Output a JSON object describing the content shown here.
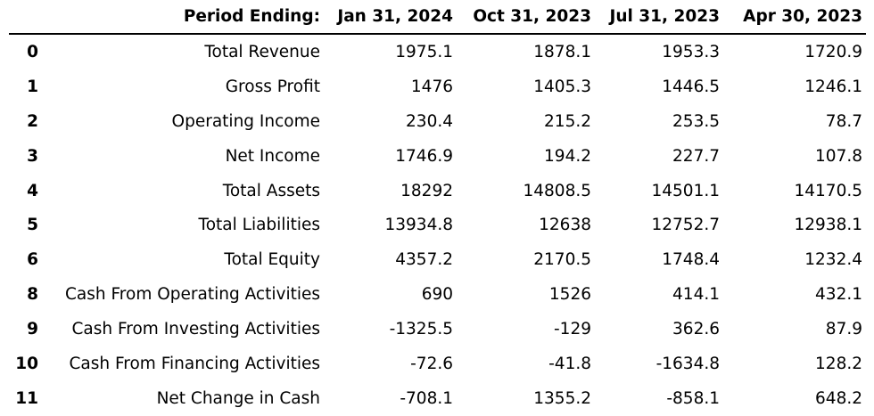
{
  "table": {
    "header": {
      "index_label": "",
      "period_label": "Period Ending:",
      "periods": [
        "Jan 31, 2024",
        "Oct 31, 2023",
        "Jul 31, 2023",
        "Apr 30, 2023"
      ]
    },
    "rows": [
      {
        "index": "0",
        "label": "Total Revenue",
        "values": [
          "1975.1",
          "1878.1",
          "1953.3",
          "1720.9"
        ]
      },
      {
        "index": "1",
        "label": "Gross Profit",
        "values": [
          "1476",
          "1405.3",
          "1446.5",
          "1246.1"
        ]
      },
      {
        "index": "2",
        "label": "Operating Income",
        "values": [
          "230.4",
          "215.2",
          "253.5",
          "78.7"
        ]
      },
      {
        "index": "3",
        "label": "Net Income",
        "values": [
          "1746.9",
          "194.2",
          "227.7",
          "107.8"
        ]
      },
      {
        "index": "4",
        "label": "Total Assets",
        "values": [
          "18292",
          "14808.5",
          "14501.1",
          "14170.5"
        ]
      },
      {
        "index": "5",
        "label": "Total Liabilities",
        "values": [
          "13934.8",
          "12638",
          "12752.7",
          "12938.1"
        ]
      },
      {
        "index": "6",
        "label": "Total Equity",
        "values": [
          "4357.2",
          "2170.5",
          "1748.4",
          "1232.4"
        ]
      },
      {
        "index": "8",
        "label": "Cash From Operating Activities",
        "values": [
          "690",
          "1526",
          "414.1",
          "432.1"
        ]
      },
      {
        "index": "9",
        "label": "Cash From Investing Activities",
        "values": [
          "-1325.5",
          "-129",
          "362.6",
          "87.9"
        ]
      },
      {
        "index": "10",
        "label": "Cash From Financing Activities",
        "values": [
          "-72.6",
          "-41.8",
          "-1634.8",
          "128.2"
        ]
      },
      {
        "index": "11",
        "label": "Net Change in Cash",
        "values": [
          "-708.1",
          "1355.2",
          "-858.1",
          "648.2"
        ]
      }
    ]
  }
}
